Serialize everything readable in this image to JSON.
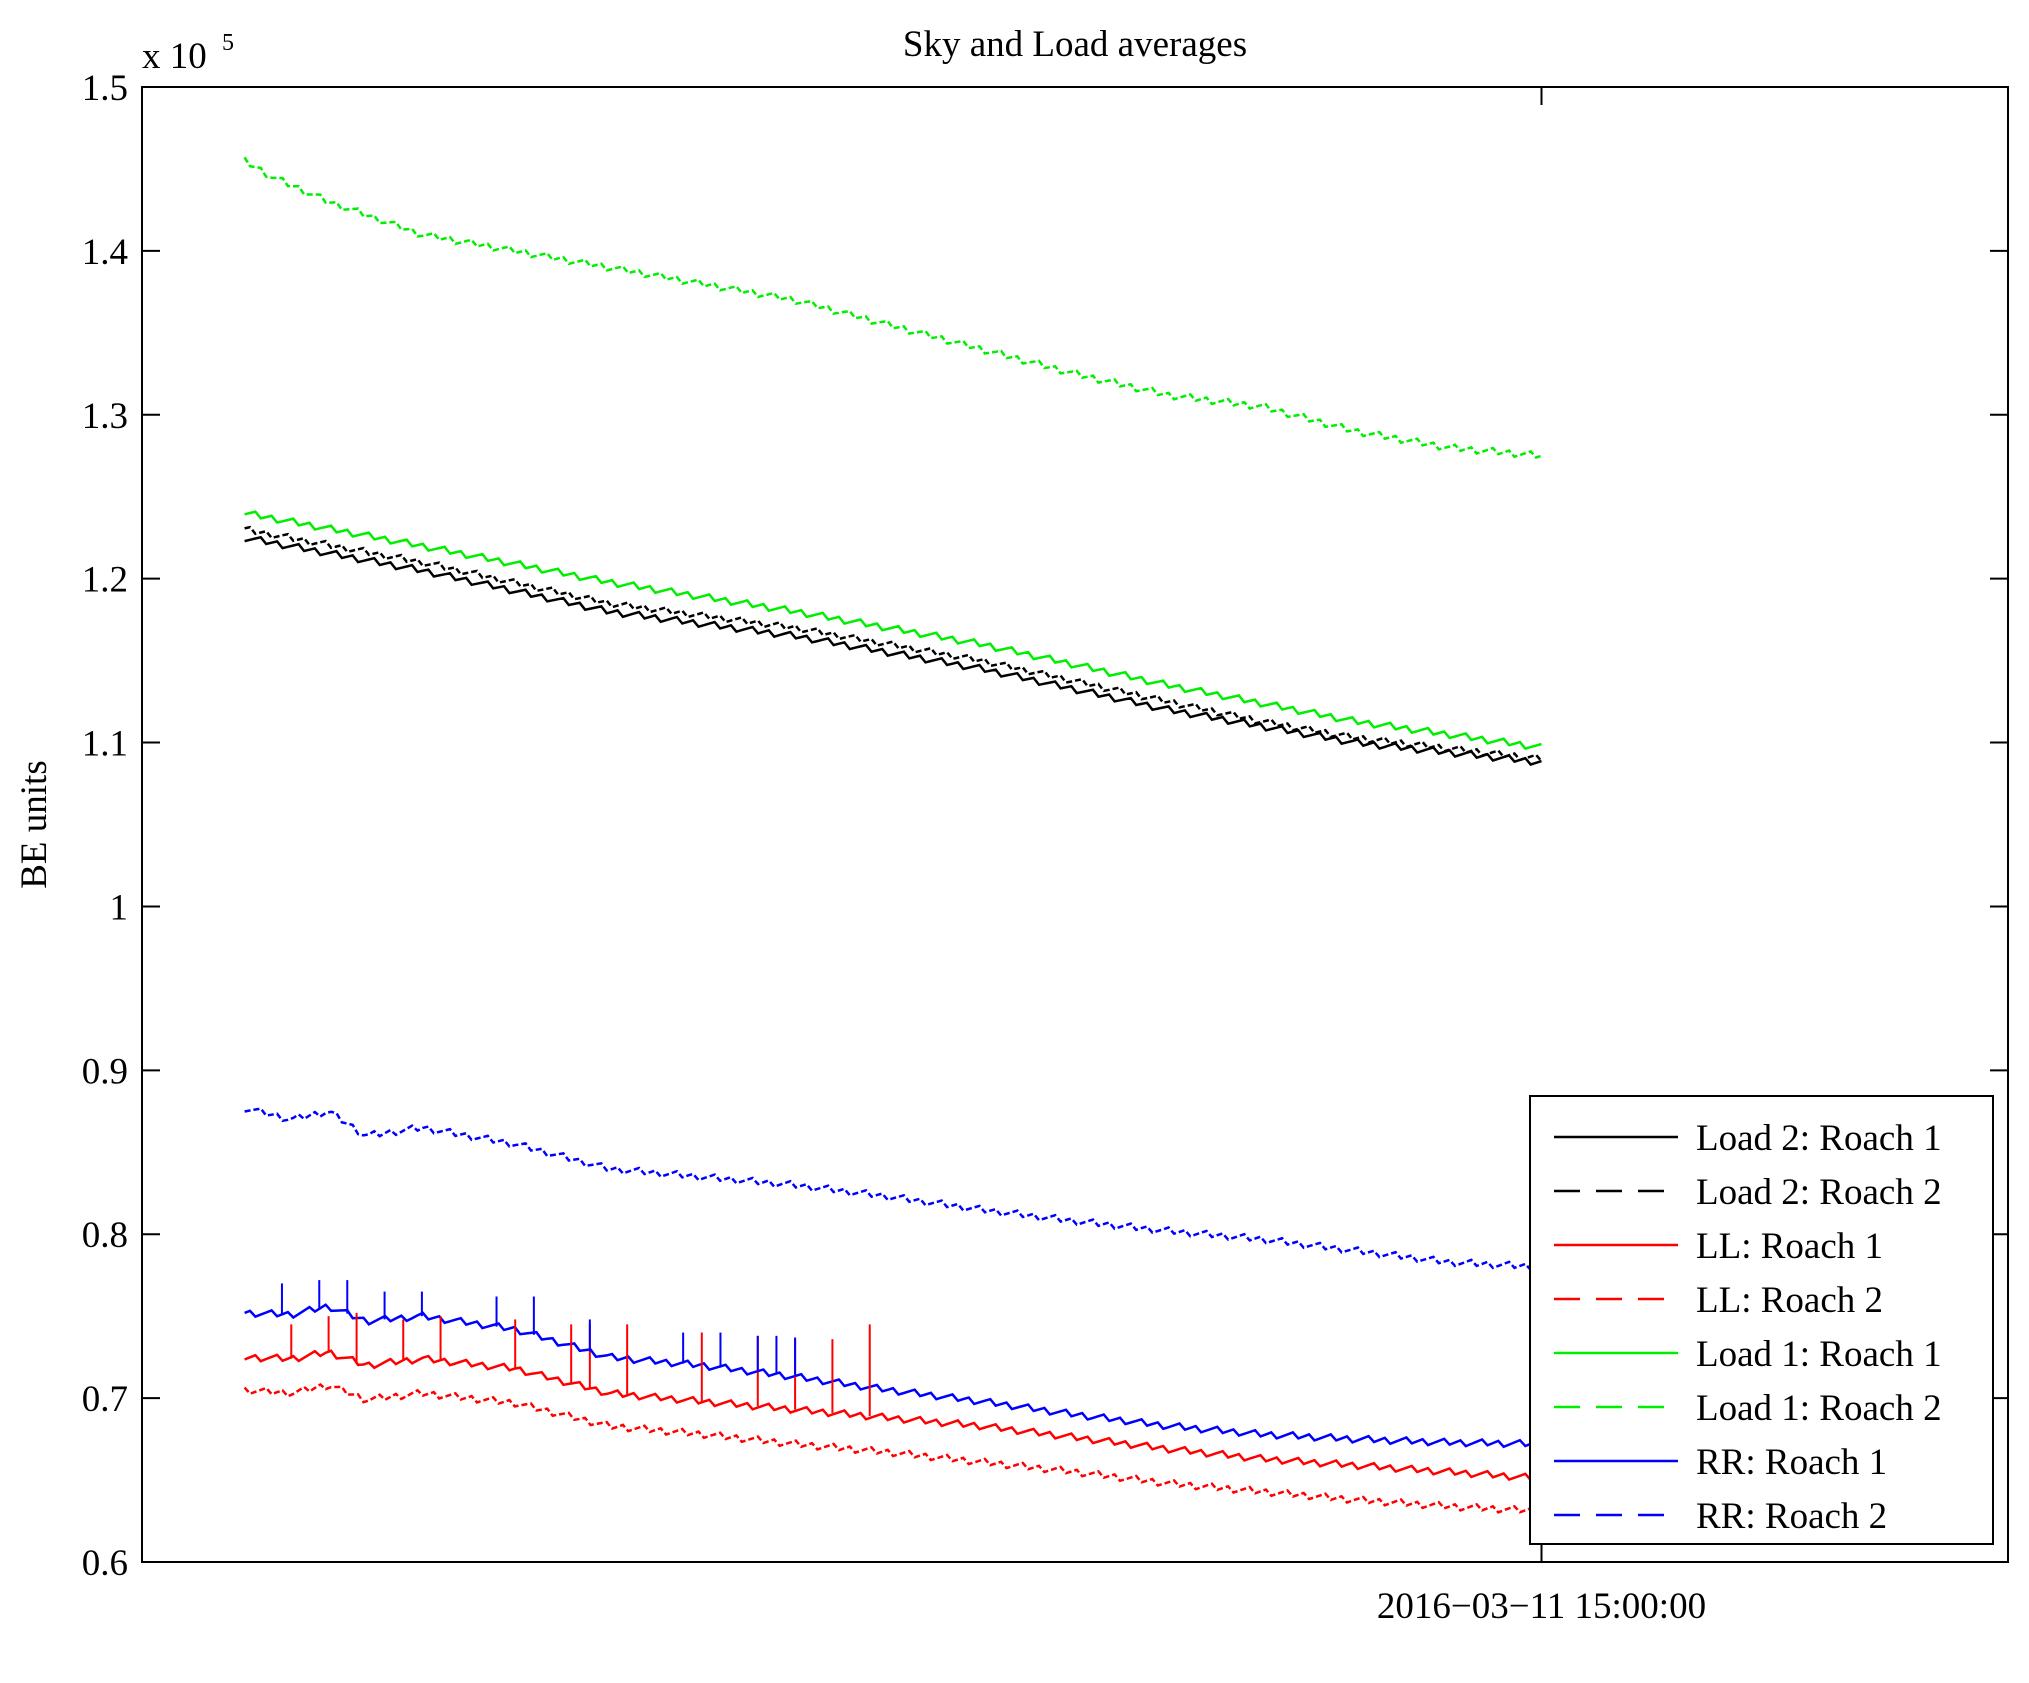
{
  "chart_data": {
    "type": "line",
    "title": "Sky and Load averages",
    "xlabel": "",
    "ylabel": "BE units",
    "y_multiplier": "x 10",
    "y_multiplier_exponent": "5",
    "ylim": [
      0.6,
      1.5
    ],
    "yticks": [
      0.6,
      0.7,
      0.8,
      0.9,
      1,
      1.1,
      1.2,
      1.3,
      1.4,
      1.5
    ],
    "ytick_labels": [
      "0.6",
      "0.7",
      "0.8",
      "0.9",
      "1",
      "1.1",
      "1.2",
      "1.3",
      "1.4",
      "1.5"
    ],
    "xlim": [
      0,
      1
    ],
    "xticks": [
      0.75
    ],
    "xtick_labels": [
      "2016−03−11 15:00:00"
    ],
    "x_note": "x is normalized time across the axis; data spans roughly 0.055 to 0.75",
    "legend_position": "bottom-right",
    "series": [
      {
        "name": "Load 2: Roach 1",
        "color": "#000000",
        "style": "solid",
        "x": [
          0.055,
          0.15,
          0.25,
          0.35,
          0.45,
          0.55,
          0.6,
          0.65,
          0.75
        ],
        "y": [
          1.225,
          1.205,
          1.18,
          1.165,
          1.145,
          1.12,
          1.11,
          1.1,
          1.088
        ]
      },
      {
        "name": "Load 2: Roach 2",
        "color": "#000000",
        "style": "dashed",
        "x": [
          0.055,
          0.15,
          0.25,
          0.35,
          0.45,
          0.55,
          0.6,
          0.65,
          0.75
        ],
        "y": [
          1.23,
          1.21,
          1.185,
          1.17,
          1.15,
          1.125,
          1.113,
          1.103,
          1.09
        ]
      },
      {
        "name": "LL: Roach 1",
        "color": "#ff0000",
        "style": "solid",
        "x": [
          0.055,
          0.08,
          0.1,
          0.12,
          0.15,
          0.2,
          0.25,
          0.3,
          0.35,
          0.4,
          0.45,
          0.5,
          0.55,
          0.6,
          0.65,
          0.7,
          0.75
        ],
        "y": [
          0.725,
          0.724,
          0.728,
          0.72,
          0.724,
          0.718,
          0.703,
          0.698,
          0.693,
          0.688,
          0.683,
          0.676,
          0.669,
          0.663,
          0.659,
          0.655,
          0.651
        ]
      },
      {
        "name": "LL: Roach 2",
        "color": "#ff0000",
        "style": "dashed",
        "x": [
          0.055,
          0.08,
          0.1,
          0.12,
          0.15,
          0.2,
          0.25,
          0.3,
          0.35,
          0.4,
          0.45,
          0.5,
          0.55,
          0.6,
          0.65,
          0.7,
          0.75
        ],
        "y": [
          0.705,
          0.703,
          0.708,
          0.699,
          0.703,
          0.697,
          0.683,
          0.678,
          0.672,
          0.667,
          0.661,
          0.655,
          0.648,
          0.643,
          0.638,
          0.634,
          0.631
        ]
      },
      {
        "name": "Load 1: Roach 1",
        "color": "#00ee00",
        "style": "solid",
        "x": [
          0.055,
          0.15,
          0.25,
          0.35,
          0.45,
          0.55,
          0.65,
          0.75
        ],
        "y": [
          1.24,
          1.22,
          1.198,
          1.18,
          1.16,
          1.135,
          1.113,
          1.097
        ]
      },
      {
        "name": "Load 1: Roach 2",
        "color": "#00ee00",
        "style": "dashed",
        "x": [
          0.055,
          0.07,
          0.1,
          0.15,
          0.2,
          0.25,
          0.3,
          0.35,
          0.4,
          0.45,
          0.5,
          0.55,
          0.6,
          0.65,
          0.7,
          0.75
        ],
        "y": [
          1.455,
          1.445,
          1.43,
          1.41,
          1.4,
          1.39,
          1.38,
          1.37,
          1.355,
          1.34,
          1.325,
          1.312,
          1.305,
          1.29,
          1.28,
          1.275
        ]
      },
      {
        "name": "RR: Roach 1",
        "color": "#0000ff",
        "style": "solid",
        "x": [
          0.055,
          0.08,
          0.1,
          0.12,
          0.15,
          0.2,
          0.25,
          0.3,
          0.35,
          0.4,
          0.45,
          0.5,
          0.55,
          0.6,
          0.65,
          0.7,
          0.75
        ],
        "y": [
          0.752,
          0.751,
          0.756,
          0.747,
          0.75,
          0.742,
          0.725,
          0.72,
          0.713,
          0.705,
          0.698,
          0.69,
          0.683,
          0.678,
          0.675,
          0.673,
          0.672
        ]
      },
      {
        "name": "RR: Roach 2",
        "color": "#0000ff",
        "style": "dashed",
        "x": [
          0.055,
          0.08,
          0.1,
          0.12,
          0.15,
          0.2,
          0.25,
          0.3,
          0.35,
          0.4,
          0.45,
          0.5,
          0.55,
          0.6,
          0.65,
          0.7,
          0.75
        ],
        "y": [
          0.877,
          0.87,
          0.875,
          0.86,
          0.865,
          0.855,
          0.84,
          0.835,
          0.83,
          0.823,
          0.815,
          0.808,
          0.802,
          0.797,
          0.79,
          0.783,
          0.78
        ]
      }
    ],
    "spikes": [
      {
        "series": "LL: Roach 1",
        "x": [
          0.08,
          0.1,
          0.115,
          0.14,
          0.16,
          0.2,
          0.23,
          0.24,
          0.26,
          0.3,
          0.33,
          0.35,
          0.37,
          0.39
        ],
        "top": [
          0.745,
          0.75,
          0.752,
          0.748,
          0.75,
          0.748,
          0.745,
          0.745,
          0.745,
          0.74,
          0.738,
          0.736,
          0.736,
          0.745
        ]
      },
      {
        "series": "RR: Roach 1",
        "x": [
          0.075,
          0.095,
          0.11,
          0.13,
          0.15,
          0.19,
          0.21,
          0.24,
          0.29,
          0.31,
          0.33,
          0.34,
          0.35
        ],
        "top": [
          0.77,
          0.772,
          0.772,
          0.765,
          0.765,
          0.762,
          0.762,
          0.748,
          0.74,
          0.74,
          0.738,
          0.738,
          0.737
        ]
      }
    ]
  }
}
